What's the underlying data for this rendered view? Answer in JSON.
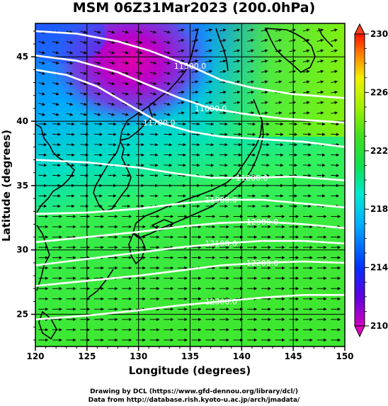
{
  "title": "MSM 06Z31Mar2023 (200.0hPa)",
  "xlabel": "Longitude (degrees)",
  "ylabel": "Latitude  (degrees)",
  "credit_line1": "Drawing by DCL (https://www.gfd-dennou.org/library/dcl/)",
  "credit_line2": "Data from http://database.rish.kyoto-u.ac.jp/arch/jmadata/",
  "map": {
    "lon_range": [
      120,
      150
    ],
    "lat_range": [
      22.5,
      47.6
    ],
    "x_ticks": [
      "120",
      "125",
      "130",
      "135",
      "140",
      "145",
      "150"
    ],
    "y_ticks": [
      "25",
      "30",
      "35",
      "40",
      "45"
    ]
  },
  "colorbar": {
    "range": [
      210,
      230
    ],
    "labels": [
      "230",
      "226",
      "222",
      "218",
      "214",
      "210"
    ]
  },
  "contours": [
    {
      "label": "11500.0",
      "points": [
        [
          120,
          47.0
        ],
        [
          124,
          46.8
        ],
        [
          128,
          46.2
        ],
        [
          131,
          45.5
        ],
        [
          135,
          44.3
        ],
        [
          138,
          43.2
        ],
        [
          141,
          42.6
        ],
        [
          145,
          42.1
        ],
        [
          150,
          41.8
        ]
      ]
    },
    {
      "label": "11600.0",
      "points": [
        [
          120,
          45.1
        ],
        [
          124,
          44.7
        ],
        [
          128,
          43.8
        ],
        [
          131,
          42.8
        ],
        [
          134,
          41.8
        ],
        [
          137,
          41.0
        ],
        [
          140,
          40.6
        ],
        [
          144,
          40.2
        ],
        [
          150,
          39.9
        ]
      ]
    },
    {
      "label": "11700.0",
      "points": [
        [
          120,
          44.0
        ],
        [
          123,
          43.6
        ],
        [
          126,
          42.7
        ],
        [
          129,
          41.3
        ],
        [
          132,
          39.9
        ],
        [
          135,
          39.2
        ],
        [
          138,
          38.8
        ],
        [
          142,
          38.6
        ],
        [
          146,
          38.4
        ],
        [
          150,
          38.0
        ]
      ]
    },
    {
      "label": "11800.0",
      "points": [
        [
          120,
          37.0
        ],
        [
          125,
          36.8
        ],
        [
          130,
          36.4
        ],
        [
          134,
          35.9
        ],
        [
          137,
          35.6
        ],
        [
          141,
          35.6
        ],
        [
          145,
          35.7
        ],
        [
          150,
          35.4
        ]
      ]
    },
    {
      "label": "11900.0",
      "points": [
        [
          120,
          32.8
        ],
        [
          125,
          32.9
        ],
        [
          130,
          33.2
        ],
        [
          134,
          33.6
        ],
        [
          138,
          33.9
        ],
        [
          142,
          33.9
        ],
        [
          146,
          33.6
        ],
        [
          150,
          33.3
        ]
      ]
    },
    {
      "label": "12000.0",
      "points": [
        [
          120,
          30.6
        ],
        [
          125,
          31.0
        ],
        [
          130,
          31.4
        ],
        [
          134,
          31.8
        ],
        [
          138,
          32.1
        ],
        [
          142,
          32.2
        ],
        [
          146,
          32.0
        ],
        [
          150,
          31.7
        ]
      ]
    },
    {
      "label": "12100.0",
      "points": [
        [
          120,
          28.8
        ],
        [
          125,
          29.3
        ],
        [
          130,
          29.8
        ],
        [
          134,
          30.2
        ],
        [
          138,
          30.5
        ],
        [
          142,
          30.7
        ],
        [
          146,
          30.7
        ],
        [
          150,
          30.5
        ]
      ]
    },
    {
      "label": "12200.0",
      "points": [
        [
          120,
          27.2
        ],
        [
          125,
          27.6
        ],
        [
          130,
          28.0
        ],
        [
          134,
          28.4
        ],
        [
          138,
          28.8
        ],
        [
          142,
          29.0
        ],
        [
          146,
          29.1
        ],
        [
          150,
          29.0
        ]
      ]
    },
    {
      "label": "12300.0",
      "points": [
        [
          120,
          24.6
        ],
        [
          125,
          24.9
        ],
        [
          130,
          25.3
        ],
        [
          134,
          25.7
        ],
        [
          138,
          26.0
        ],
        [
          142,
          26.3
        ],
        [
          146,
          26.5
        ],
        [
          150,
          26.5
        ]
      ]
    }
  ],
  "colors": {
    "background_field_low": "#c000a0",
    "background_field_mid": "#00c8ff",
    "background_field_high": "#40f000",
    "coast": "#000000",
    "contour": "#ffffff",
    "arrow": "#000000"
  }
}
